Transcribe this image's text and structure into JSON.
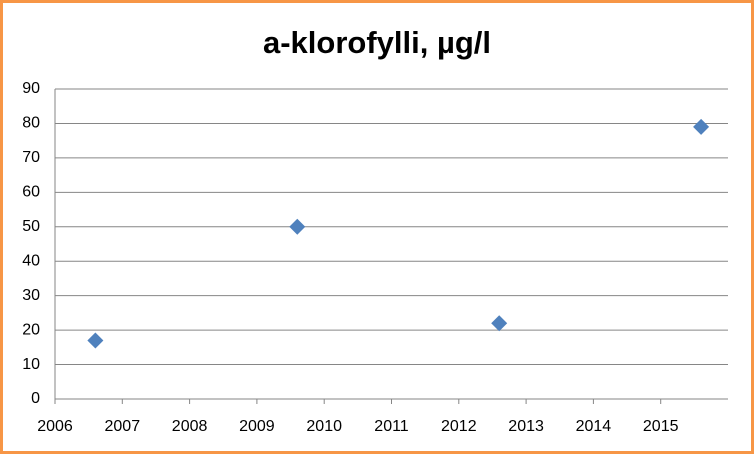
{
  "chart_data": {
    "type": "scatter",
    "title": "a-klorofylli, µg/l",
    "x": [
      2006.6,
      2009.6,
      2012.6,
      2015.6
    ],
    "values": [
      17,
      50,
      22,
      79
    ],
    "color": "#4f81bd",
    "xlim": [
      2006,
      2016
    ],
    "xticks": [
      2006,
      2007,
      2008,
      2009,
      2010,
      2011,
      2012,
      2013,
      2014,
      2015
    ],
    "ylim": [
      0,
      90
    ],
    "yticks": [
      0,
      10,
      20,
      30,
      40,
      50,
      60,
      70,
      80,
      90
    ],
    "grid": true
  }
}
